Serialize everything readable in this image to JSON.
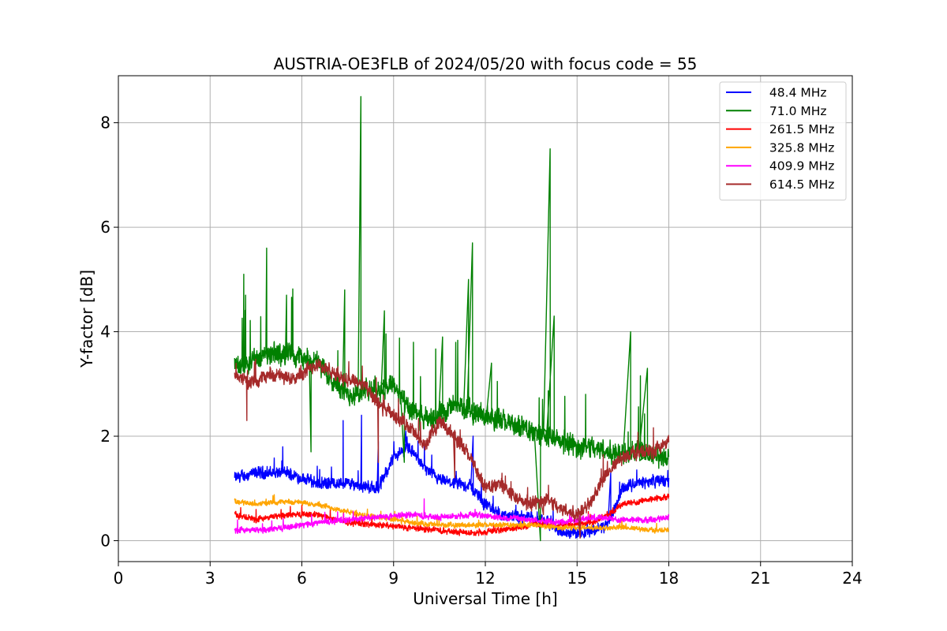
{
  "chart_data": {
    "type": "line",
    "title": "AUSTRIA-OE3FLB of 2024/05/20 with focus code = 55",
    "xlabel": "Universal Time [h]",
    "ylabel": "Y-factor [dB]",
    "xlim": [
      0,
      24
    ],
    "ylim": [
      -0.4,
      8.9
    ],
    "xticks": [
      0,
      3,
      6,
      9,
      12,
      15,
      18,
      21,
      24
    ],
    "yticks": [
      0,
      2,
      4,
      6,
      8
    ],
    "xtick_labels": [
      "0",
      "3",
      "6",
      "9",
      "12",
      "15",
      "18",
      "21",
      "24"
    ],
    "ytick_labels": [
      "0",
      "2",
      "4",
      "6",
      "8"
    ],
    "grid": true,
    "legend_position": "top-right",
    "series": [
      {
        "name": " 48.4 MHz",
        "color": "#0000ff",
        "noise": 0.12,
        "x": [
          3.8,
          4.5,
          5.5,
          6.5,
          7.5,
          8.5,
          9.0,
          9.5,
          10.0,
          10.5,
          11.0,
          11.5,
          12.0,
          12.5,
          13.0,
          13.5,
          14.0,
          14.5,
          15.0,
          15.5,
          16.0,
          16.5,
          17.0,
          17.5,
          18.0
        ],
        "values": [
          1.2,
          1.3,
          1.3,
          1.1,
          1.1,
          1.0,
          1.6,
          1.8,
          1.4,
          1.15,
          1.1,
          1.05,
          0.7,
          0.5,
          0.45,
          0.45,
          0.4,
          0.15,
          0.15,
          0.2,
          0.3,
          1.0,
          1.1,
          1.15,
          1.15
        ],
        "spikes": [
          [
            7.35,
            2.3
          ],
          [
            7.95,
            2.4
          ],
          [
            8.5,
            1.9
          ],
          [
            9.4,
            2.1
          ],
          [
            11.6,
            2.0
          ],
          [
            16.1,
            1.3
          ]
        ]
      },
      {
        "name": " 71.0 MHz",
        "color": "#008000",
        "noise": 0.22,
        "x": [
          3.8,
          4.5,
          5.5,
          6.5,
          7.5,
          8.5,
          9.0,
          9.5,
          10.0,
          10.5,
          11.0,
          11.5,
          12.0,
          12.5,
          13.0,
          13.5,
          14.0,
          14.5,
          15.0,
          15.5,
          16.0,
          16.5,
          17.0,
          17.5,
          18.0
        ],
        "values": [
          3.3,
          3.5,
          3.6,
          3.4,
          2.8,
          2.9,
          3.0,
          2.5,
          2.3,
          2.4,
          2.6,
          2.5,
          2.4,
          2.3,
          2.2,
          2.1,
          2.0,
          1.9,
          1.8,
          1.8,
          1.7,
          1.7,
          1.7,
          1.6,
          1.6
        ],
        "spikes": [
          [
            4.1,
            5.1
          ],
          [
            4.85,
            5.6
          ],
          [
            5.5,
            4.7
          ],
          [
            6.3,
            1.7
          ],
          [
            7.4,
            4.8
          ],
          [
            7.93,
            8.5
          ],
          [
            8.7,
            4.4
          ],
          [
            9.35,
            1.5
          ],
          [
            10.6,
            3.9
          ],
          [
            11.45,
            5.0
          ],
          [
            11.58,
            5.7
          ],
          [
            12.2,
            3.4
          ],
          [
            13.8,
            0.0
          ],
          [
            14.12,
            7.5
          ],
          [
            14.25,
            4.3
          ],
          [
            16.75,
            4.0
          ],
          [
            17.3,
            3.3
          ]
        ]
      },
      {
        "name": " 261.5 MHz",
        "color": "#ff0000",
        "noise": 0.06,
        "x": [
          3.8,
          4.5,
          5.5,
          6.5,
          7.5,
          8.5,
          9.5,
          10.5,
          11.5,
          12.5,
          13.5,
          14.5,
          15.5,
          16.0,
          16.5,
          17.0,
          17.5,
          18.0
        ],
        "values": [
          0.5,
          0.4,
          0.5,
          0.5,
          0.35,
          0.3,
          0.25,
          0.2,
          0.15,
          0.2,
          0.3,
          0.3,
          0.35,
          0.5,
          0.7,
          0.75,
          0.8,
          0.85
        ],
        "spikes": []
      },
      {
        "name": " 325.8 MHz",
        "color": "#ffa500",
        "noise": 0.05,
        "x": [
          3.8,
          4.5,
          5.5,
          6.5,
          7.5,
          8.5,
          9.5,
          10.5,
          11.5,
          12.5,
          13.5,
          14.5,
          15.5,
          16.5,
          17.5,
          18.0
        ],
        "values": [
          0.75,
          0.7,
          0.75,
          0.7,
          0.55,
          0.45,
          0.35,
          0.3,
          0.3,
          0.3,
          0.3,
          0.25,
          0.25,
          0.25,
          0.2,
          0.2
        ],
        "spikes": []
      },
      {
        "name": " 409.9 MHz",
        "color": "#ff00ff",
        "noise": 0.06,
        "x": [
          3.8,
          4.5,
          5.5,
          6.5,
          7.5,
          8.5,
          9.5,
          10.5,
          11.5,
          12.5,
          13.5,
          14.5,
          15.5,
          16.5,
          17.5,
          18.0
        ],
        "values": [
          0.2,
          0.2,
          0.25,
          0.35,
          0.4,
          0.45,
          0.5,
          0.45,
          0.5,
          0.45,
          0.4,
          0.35,
          0.45,
          0.4,
          0.4,
          0.45
        ],
        "spikes": [
          [
            10.0,
            0.8
          ]
        ]
      },
      {
        "name": " 614.5 MHz",
        "color": "#a52a2a",
        "noise": 0.14,
        "x": [
          3.8,
          4.3,
          5.0,
          5.5,
          6.0,
          6.5,
          7.0,
          7.5,
          8.0,
          8.5,
          9.0,
          9.5,
          10.0,
          10.5,
          11.0,
          11.5,
          12.0,
          12.5,
          13.0,
          13.5,
          14.0,
          14.5,
          15.0,
          15.5,
          16.0,
          16.5,
          17.0,
          17.5,
          18.0
        ],
        "values": [
          3.2,
          3.0,
          3.2,
          3.1,
          3.2,
          3.4,
          3.2,
          3.1,
          3.0,
          2.6,
          2.4,
          2.2,
          1.8,
          2.3,
          2.0,
          1.6,
          1.0,
          1.1,
          0.8,
          0.7,
          0.8,
          0.6,
          0.5,
          0.8,
          1.3,
          1.6,
          1.7,
          1.7,
          1.9
        ],
        "spikes": [
          [
            4.2,
            2.3
          ],
          [
            8.5,
            1.5
          ],
          [
            11.0,
            1.2
          ],
          [
            13.9,
            0.5
          ],
          [
            15.1,
            0.05
          ]
        ]
      }
    ]
  }
}
